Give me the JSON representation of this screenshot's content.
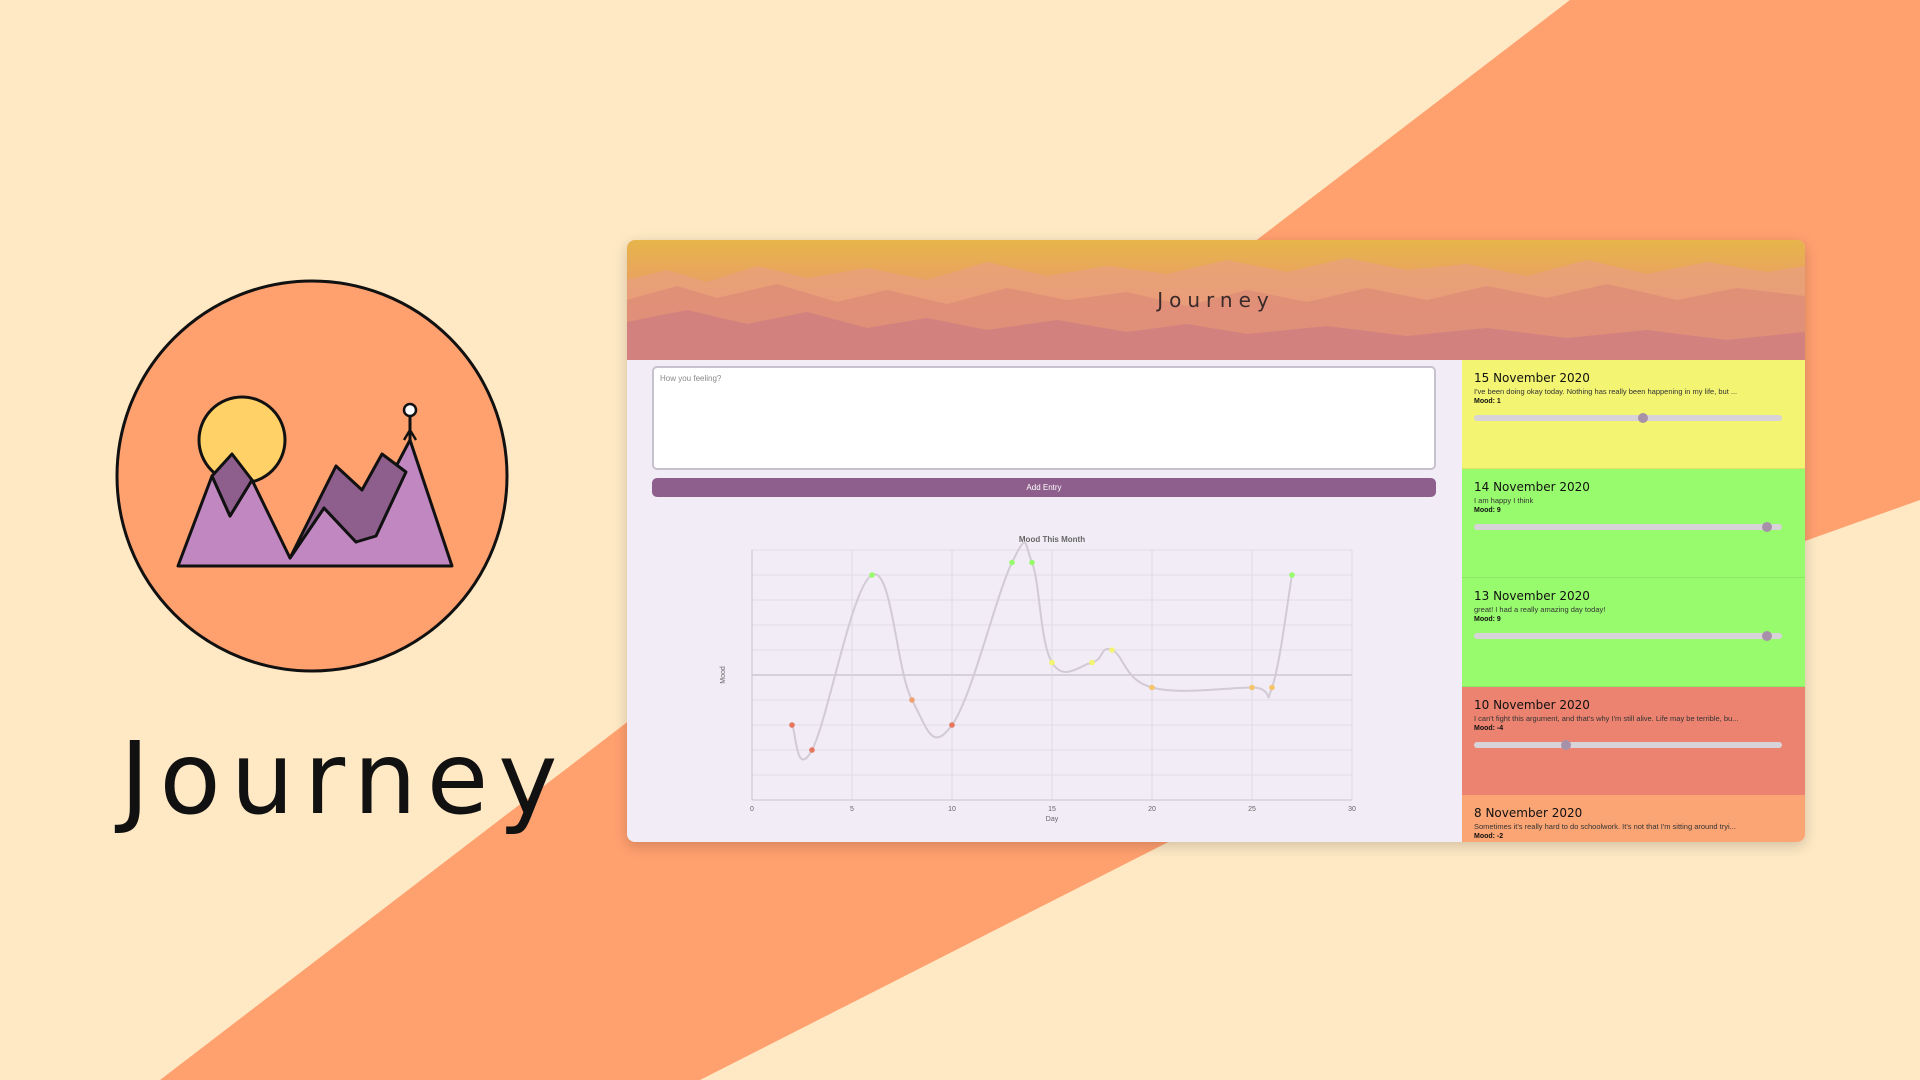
{
  "brand": {
    "name": "Journey",
    "logo_name": "journey-logo"
  },
  "colors": {
    "background": "#FEE9C4",
    "stripe": "#FFA06F",
    "accent": "#8E5E8C",
    "logo_circle": "#FFA06F",
    "logo_sun": "#FFD166",
    "logo_mountain_light": "#C187C1",
    "logo_mountain_dark": "#8E5E8C"
  },
  "app": {
    "title": "Journey",
    "composer": {
      "placeholder": "How you feeling?",
      "value": "",
      "add_label": "Add Entry"
    }
  },
  "chart_data": {
    "type": "line",
    "title": "Mood This Month",
    "xlabel": "Day",
    "ylabel": "Mood",
    "xlim": [
      0,
      30
    ],
    "ylim": [
      -10,
      10
    ],
    "xticks": [
      0,
      5,
      10,
      15,
      20,
      25,
      30
    ],
    "grid": true,
    "smooth": true,
    "x": [
      2,
      3,
      6,
      8,
      10,
      13,
      14,
      15,
      17,
      18,
      20,
      25,
      26,
      27
    ],
    "y": [
      -4,
      -6,
      8,
      -2,
      -4,
      9,
      9,
      1,
      1,
      2,
      -1,
      -1,
      -1,
      8
    ]
  },
  "entries": [
    {
      "date": "15 November 2020",
      "text": "I've been doing okay today. Nothing has really been happening in my life, but ...",
      "mood_label": "Mood: 1",
      "mood": 1,
      "color": "#F3F472"
    },
    {
      "date": "14 November 2020",
      "text": "I am happy I think",
      "mood_label": "Mood: 9",
      "mood": 9,
      "color": "#98FB6E"
    },
    {
      "date": "13 November 2020",
      "text": "great! I had a really amazing day today!",
      "mood_label": "Mood: 9",
      "mood": 9,
      "color": "#98FB6E"
    },
    {
      "date": "10 November 2020",
      "text": "I can't fight this argument, and that's why I'm still alive. Life may be terrible, bu...",
      "mood_label": "Mood: -4",
      "mood": -4,
      "color": "#EB8370"
    },
    {
      "date": "8 November 2020",
      "text": "Sometimes it's really hard to do schoolwork. It's not that I'm sitting around tryi...",
      "mood_label": "Mood: -2",
      "mood": -2,
      "color": "#FBA574"
    }
  ]
}
